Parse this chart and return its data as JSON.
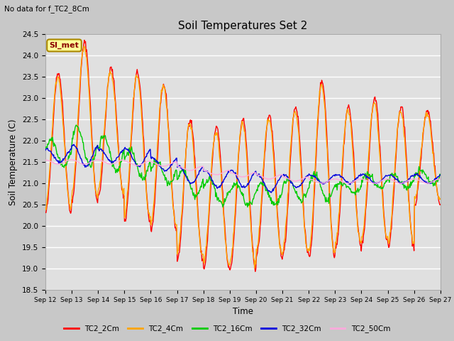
{
  "title": "Soil Temperatures Set 2",
  "subtitle": "No data for f_TC2_8Cm",
  "xlabel": "Time",
  "ylabel": "Soil Temperature (C)",
  "ylim": [
    18.5,
    24.5
  ],
  "fig_facecolor": "#c8c8c8",
  "plot_bg_color": "#e0e0e0",
  "grid_color": "#ffffff",
  "series_colors": {
    "TC2_2Cm": "#ff0000",
    "TC2_4Cm": "#ffa500",
    "TC2_16Cm": "#00cc00",
    "TC2_32Cm": "#0000dd",
    "TC2_50Cm": "#ffaadd"
  },
  "legend_box_color": "#ffff99",
  "legend_box_text": "SI_met",
  "legend_box_border": "#aa8800",
  "x_tick_labels": [
    "Sep 12",
    "Sep 13",
    "Sep 14",
    "Sep 15",
    "Sep 16",
    "Sep 17",
    "Sep 18",
    "Sep 19",
    "Sep 20",
    "Sep 21",
    "Sep 22",
    "Sep 23",
    "Sep 24",
    "Sep 25",
    "Sep 26",
    "Sep 27"
  ],
  "n_days": 15,
  "points_per_day": 48
}
